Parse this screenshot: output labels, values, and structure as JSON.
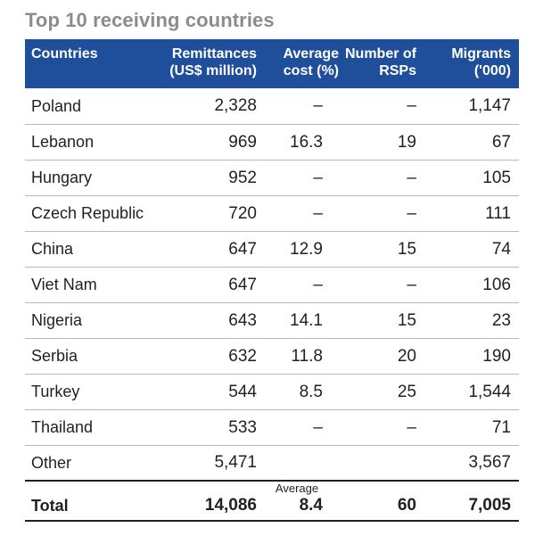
{
  "title": "Top 10 receiving countries",
  "header": {
    "countries": "Countries",
    "remittances": "Remittances (US$ million)",
    "average_cost": "Average cost (%)",
    "number_rsps": "Number of RSPs",
    "migrants": "Migrants ('000)"
  },
  "rows": [
    {
      "country": "Poland",
      "remittances": "2,328",
      "cost": "–",
      "rsps": "–",
      "migrants": "1,147"
    },
    {
      "country": "Lebanon",
      "remittances": "969",
      "cost": "16.3",
      "rsps": "19",
      "migrants": "67"
    },
    {
      "country": "Hungary",
      "remittances": "952",
      "cost": "–",
      "rsps": "–",
      "migrants": "105"
    },
    {
      "country": "Czech Republic",
      "remittances": "720",
      "cost": "–",
      "rsps": "–",
      "migrants": "111"
    },
    {
      "country": "China",
      "remittances": "647",
      "cost": "12.9",
      "rsps": "15",
      "migrants": "74"
    },
    {
      "country": "Viet Nam",
      "remittances": "647",
      "cost": "–",
      "rsps": "–",
      "migrants": "106"
    },
    {
      "country": "Nigeria",
      "remittances": "643",
      "cost": "14.1",
      "rsps": "15",
      "migrants": "23"
    },
    {
      "country": "Serbia",
      "remittances": "632",
      "cost": "11.8",
      "rsps": "20",
      "migrants": "190"
    },
    {
      "country": "Turkey",
      "remittances": "544",
      "cost": "8.5",
      "rsps": "25",
      "migrants": "1,544"
    },
    {
      "country": "Thailand",
      "remittances": "533",
      "cost": "–",
      "rsps": "–",
      "migrants": "71"
    },
    {
      "country": "Other",
      "remittances": "5,471",
      "cost": "",
      "rsps": "",
      "migrants": "3,567"
    }
  ],
  "total": {
    "country": "Total",
    "remittances": "14,086",
    "cost_label": "Average",
    "cost": "8.4",
    "rsps": "60",
    "migrants": "7,005"
  },
  "colors": {
    "header_bg": "#1f4f9b",
    "title": "#8a8c8e",
    "row_divider": "#b9bbbd"
  }
}
